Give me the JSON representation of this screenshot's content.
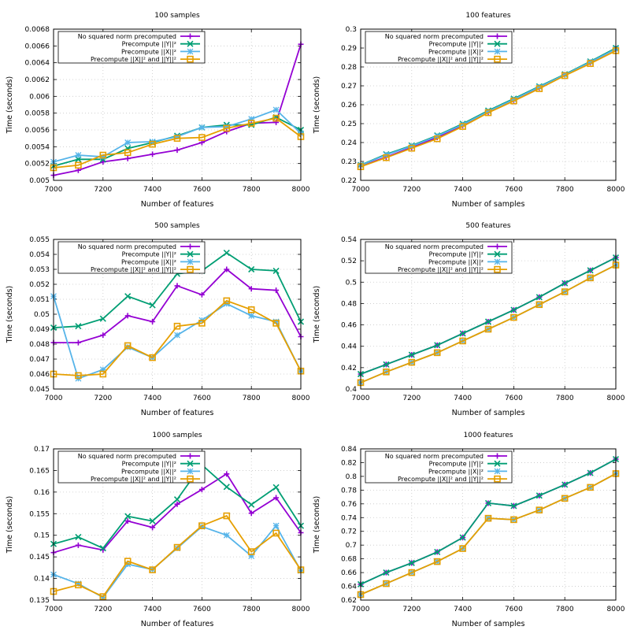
{
  "series_styles": [
    {
      "color": "#9400d3",
      "marker": "plus"
    },
    {
      "color": "#009e73",
      "marker": "cross"
    },
    {
      "color": "#56b4e9",
      "marker": "star"
    },
    {
      "color": "#e69f00",
      "marker": "square"
    }
  ],
  "chart_data": [
    {
      "type": "line",
      "title": "100 samples",
      "xlabel": "Number of features",
      "ylabel": "Time (seconds)",
      "grid": true,
      "legend": "top-left",
      "xlim": [
        7000,
        8000
      ],
      "ylim": [
        0.005,
        0.0068
      ],
      "xticks": [
        7000,
        7200,
        7400,
        7600,
        7800,
        8000
      ],
      "yticks": [
        "0.005",
        "0.0052",
        "0.0054",
        "0.0056",
        "0.0058",
        "0.006",
        "0.0062",
        "0.0064",
        "0.0066",
        "0.0068"
      ],
      "x": [
        7000,
        7100,
        7200,
        7300,
        7400,
        7500,
        7600,
        7700,
        7800,
        7900,
        8000
      ],
      "series": [
        {
          "name": "No squared norm precomputed",
          "values": [
            0.00506,
            0.00512,
            0.00522,
            0.00526,
            0.00531,
            0.00536,
            0.00545,
            0.00558,
            0.00568,
            0.00569,
            0.00662
          ]
        },
        {
          "name": "Precompute ||Y||²",
          "values": [
            0.00517,
            0.00525,
            0.00525,
            0.00538,
            0.00545,
            0.00553,
            0.00563,
            0.00566,
            0.00566,
            0.00575,
            0.0056
          ]
        },
        {
          "name": "Precompute ||X||²",
          "values": [
            0.00522,
            0.0053,
            0.00528,
            0.00545,
            0.00546,
            0.00552,
            0.00563,
            0.00564,
            0.00573,
            0.00584,
            0.00556
          ]
        },
        {
          "name": "Precompute ||X||² and ||Y||²",
          "values": [
            0.00515,
            0.00518,
            0.0053,
            0.00533,
            0.00543,
            0.0055,
            0.00551,
            0.00562,
            0.00568,
            0.00574,
            0.00552
          ]
        }
      ]
    },
    {
      "type": "line",
      "title": "100 features",
      "xlabel": "Number of samples",
      "ylabel": "Time (seconds)",
      "grid": true,
      "legend": "top-left",
      "xlim": [
        7000,
        8000
      ],
      "ylim": [
        0.22,
        0.3
      ],
      "xticks": [
        7000,
        7200,
        7400,
        7600,
        7800,
        8000
      ],
      "yticks": [
        "0.22",
        "0.23",
        "0.24",
        "0.25",
        "0.26",
        "0.27",
        "0.28",
        "0.29",
        "0.3"
      ],
      "x": [
        7000,
        7100,
        7200,
        7300,
        7400,
        7500,
        7600,
        7700,
        7800,
        7900,
        8000
      ],
      "series": [
        {
          "name": "No squared norm precomputed",
          "values": [
            0.2275,
            0.2323,
            0.2374,
            0.2427,
            0.249,
            0.2559,
            0.2624,
            0.269,
            0.2759,
            0.2823,
            0.2897
          ]
        },
        {
          "name": "Precompute ||Y||²",
          "values": [
            0.2281,
            0.2338,
            0.2384,
            0.2437,
            0.2499,
            0.2569,
            0.2632,
            0.2697,
            0.2761,
            0.2829,
            0.29
          ]
        },
        {
          "name": "Precompute ||X||²",
          "values": [
            0.2279,
            0.2335,
            0.2381,
            0.2434,
            0.2495,
            0.2565,
            0.2628,
            0.2694,
            0.2758,
            0.2826,
            0.2895
          ]
        },
        {
          "name": "Precompute ||X||² and ||Y||²",
          "values": [
            0.2272,
            0.232,
            0.237,
            0.242,
            0.2485,
            0.2558,
            0.262,
            0.2685,
            0.2754,
            0.2818,
            0.2886
          ]
        }
      ]
    },
    {
      "type": "line",
      "title": "500 samples",
      "xlabel": "Number of features",
      "ylabel": "Time (seconds)",
      "grid": true,
      "legend": "top-left",
      "xlim": [
        7000,
        8000
      ],
      "ylim": [
        0.045,
        0.055
      ],
      "xticks": [
        7000,
        7200,
        7400,
        7600,
        7800,
        8000
      ],
      "yticks": [
        "0.045",
        "0.046",
        "0.047",
        "0.048",
        "0.049",
        "0.05",
        "0.051",
        "0.052",
        "0.053",
        "0.054",
        "0.055"
      ],
      "x": [
        7000,
        7100,
        7200,
        7300,
        7400,
        7500,
        7600,
        7700,
        7800,
        7900,
        8000
      ],
      "series": [
        {
          "name": "No squared norm precomputed",
          "values": [
            0.0481,
            0.0481,
            0.0486,
            0.0499,
            0.0495,
            0.0519,
            0.0513,
            0.053,
            0.0517,
            0.0516,
            0.0485
          ]
        },
        {
          "name": "Precompute ||Y||²",
          "values": [
            0.0491,
            0.0492,
            0.0497,
            0.0512,
            0.0506,
            0.0527,
            0.0529,
            0.0541,
            0.053,
            0.0529,
            0.0495
          ]
        },
        {
          "name": "Precompute ||X||²",
          "values": [
            0.0512,
            0.0457,
            0.0463,
            0.0478,
            0.0471,
            0.0486,
            0.0496,
            0.0507,
            0.0499,
            0.0495,
            0.0462
          ]
        },
        {
          "name": "Precompute ||X||² and ||Y||²",
          "values": [
            0.046,
            0.0459,
            0.046,
            0.0479,
            0.0471,
            0.0492,
            0.0494,
            0.0509,
            0.0503,
            0.0494,
            0.0462
          ]
        }
      ]
    },
    {
      "type": "line",
      "title": "500 features",
      "xlabel": "Number of samples",
      "ylabel": "Time (seconds)",
      "grid": true,
      "legend": "top-left",
      "xlim": [
        7000,
        8000
      ],
      "ylim": [
        0.4,
        0.54
      ],
      "xticks": [
        7000,
        7200,
        7400,
        7600,
        7800,
        8000
      ],
      "yticks": [
        "0.4",
        "0.42",
        "0.44",
        "0.46",
        "0.48",
        "0.5",
        "0.52",
        "0.54"
      ],
      "x": [
        7000,
        7100,
        7200,
        7300,
        7400,
        7500,
        7600,
        7700,
        7800,
        7900,
        8000
      ],
      "series": [
        {
          "name": "No squared norm precomputed",
          "values": [
            0.414,
            0.423,
            0.432,
            0.441,
            0.452,
            0.463,
            0.474,
            0.486,
            0.499,
            0.511,
            0.523
          ]
        },
        {
          "name": "Precompute ||Y||²",
          "values": [
            0.414,
            0.423,
            0.432,
            0.441,
            0.452,
            0.463,
            0.474,
            0.486,
            0.499,
            0.511,
            0.523
          ]
        },
        {
          "name": "Precompute ||X||²",
          "values": [
            0.406,
            0.416,
            0.425,
            0.434,
            0.445,
            0.456,
            0.467,
            0.479,
            0.491,
            0.504,
            0.516
          ]
        },
        {
          "name": "Precompute ||X||² and ||Y||²",
          "values": [
            0.406,
            0.416,
            0.425,
            0.434,
            0.445,
            0.456,
            0.467,
            0.479,
            0.491,
            0.504,
            0.516
          ]
        }
      ]
    },
    {
      "type": "line",
      "title": "1000 samples",
      "xlabel": "Number of features",
      "ylabel": "Time (seconds)",
      "grid": true,
      "legend": "top-left",
      "xlim": [
        7000,
        8000
      ],
      "ylim": [
        0.135,
        0.17
      ],
      "xticks": [
        7000,
        7200,
        7400,
        7600,
        7800,
        8000
      ],
      "yticks": [
        "0.135",
        "0.14",
        "0.145",
        "0.15",
        "0.155",
        "0.16",
        "0.165",
        "0.17"
      ],
      "x": [
        7000,
        7100,
        7200,
        7300,
        7400,
        7500,
        7600,
        7700,
        7800,
        7900,
        8000
      ],
      "series": [
        {
          "name": "No squared norm precomputed",
          "values": [
            0.146,
            0.1477,
            0.1466,
            0.1533,
            0.1518,
            0.1572,
            0.1606,
            0.1642,
            0.1551,
            0.1587,
            0.1506
          ]
        },
        {
          "name": "Precompute ||Y||²",
          "values": [
            0.148,
            0.1496,
            0.147,
            0.1544,
            0.1533,
            0.1583,
            0.1663,
            0.1612,
            0.1571,
            0.1611,
            0.1522
          ]
        },
        {
          "name": "Precompute ||X||²",
          "values": [
            0.1409,
            0.1388,
            0.1356,
            0.1433,
            0.1421,
            0.147,
            0.152,
            0.15,
            0.1452,
            0.1522,
            0.1418
          ]
        },
        {
          "name": "Precompute ||X||² and ||Y||²",
          "values": [
            0.137,
            0.1385,
            0.1358,
            0.144,
            0.142,
            0.1472,
            0.1522,
            0.1545,
            0.1462,
            0.1505,
            0.142
          ]
        }
      ]
    },
    {
      "type": "line",
      "title": "1000 features",
      "xlabel": "Number of samples",
      "ylabel": "Time (seconds)",
      "grid": true,
      "legend": "top-left",
      "xlim": [
        7000,
        8000
      ],
      "ylim": [
        0.62,
        0.84
      ],
      "xticks": [
        7000,
        7200,
        7400,
        7600,
        7800,
        8000
      ],
      "yticks": [
        "0.62",
        "0.64",
        "0.66",
        "0.68",
        "0.7",
        "0.72",
        "0.74",
        "0.76",
        "0.78",
        "0.8",
        "0.82",
        "0.84"
      ],
      "x": [
        7000,
        7100,
        7200,
        7300,
        7400,
        7500,
        7600,
        7700,
        7800,
        7900,
        8000
      ],
      "series": [
        {
          "name": "No squared norm precomputed",
          "values": [
            0.643,
            0.66,
            0.674,
            0.69,
            0.711,
            0.761,
            0.757,
            0.772,
            0.788,
            0.805,
            0.825
          ]
        },
        {
          "name": "Precompute ||Y||²",
          "values": [
            0.643,
            0.66,
            0.674,
            0.69,
            0.711,
            0.761,
            0.757,
            0.772,
            0.788,
            0.805,
            0.825
          ]
        },
        {
          "name": "Precompute ||X||²",
          "values": [
            0.628,
            0.644,
            0.66,
            0.676,
            0.695,
            0.739,
            0.737,
            0.751,
            0.768,
            0.784,
            0.804
          ]
        },
        {
          "name": "Precompute ||X||² and ||Y||²",
          "values": [
            0.628,
            0.644,
            0.66,
            0.676,
            0.695,
            0.739,
            0.737,
            0.751,
            0.768,
            0.784,
            0.804
          ]
        }
      ]
    }
  ]
}
